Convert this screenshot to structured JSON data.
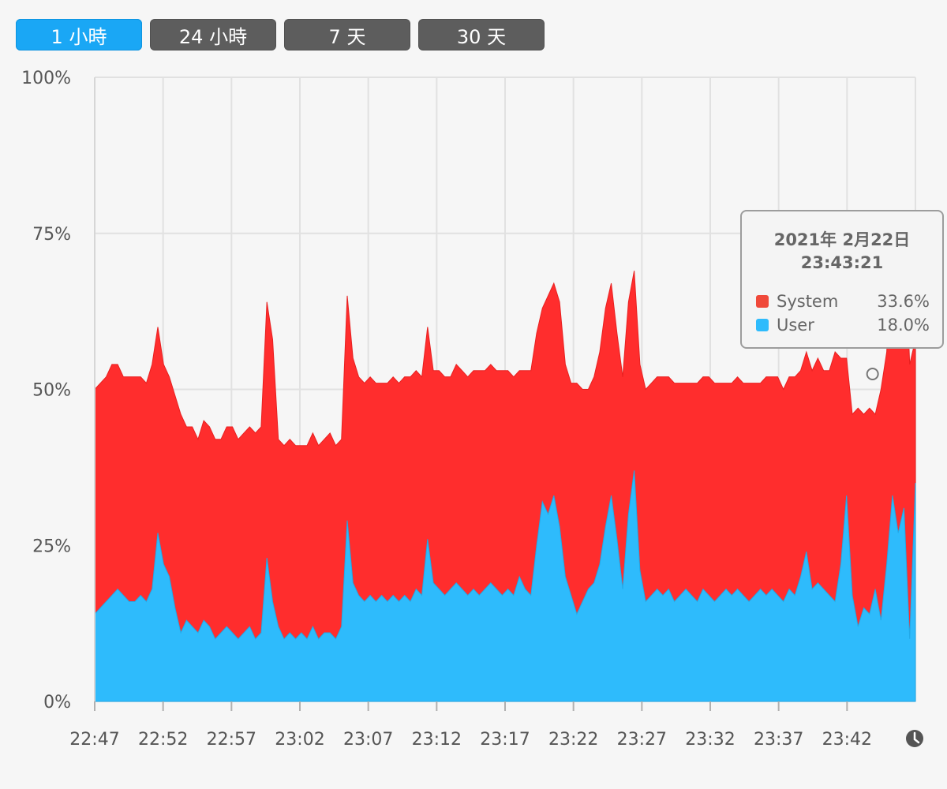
{
  "tabs": [
    {
      "label": "1 小時",
      "active": true
    },
    {
      "label": "24 小時",
      "active": false
    },
    {
      "label": "7 天",
      "active": false
    },
    {
      "label": "30 天",
      "active": false
    }
  ],
  "colors": {
    "system": "#ff2d2d",
    "user": "#2ebbfc",
    "tab_active": "#1aa7f5",
    "tab_inactive": "#5d5d5d",
    "grid": "#e1e1e1"
  },
  "tooltip": {
    "date": "2021年 2月22日",
    "time": "23:43:21",
    "rows": [
      {
        "label": "System",
        "value": "33.6%",
        "color": "#f0493a"
      },
      {
        "label": "User",
        "value": "18.0%",
        "color": "#2ebbfc"
      }
    ]
  },
  "clock_icon": "clock-icon",
  "chart_data": {
    "type": "area",
    "stacked": true,
    "x_tick_labels": [
      "22:47",
      "22:52",
      "22:57",
      "23:02",
      "23:07",
      "23:12",
      "23:17",
      "23:22",
      "23:27",
      "23:32",
      "23:37",
      "23:42"
    ],
    "y_tick_labels": [
      "0%",
      "25%",
      "50%",
      "75%",
      "100%"
    ],
    "ylim": [
      0,
      100
    ],
    "x_start": "22:47",
    "x_end": "23:47",
    "grid": true,
    "series": [
      {
        "name": "User",
        "values": [
          14,
          15,
          16,
          17,
          18,
          17,
          16,
          16,
          17,
          16,
          18,
          27,
          22,
          20,
          15,
          11,
          13,
          12,
          11,
          13,
          12,
          10,
          11,
          12,
          11,
          10,
          11,
          12,
          10,
          11,
          23,
          16,
          12,
          10,
          11,
          10,
          11,
          10,
          12,
          10,
          11,
          11,
          10,
          12,
          29,
          19,
          17,
          16,
          17,
          16,
          17,
          16,
          17,
          16,
          17,
          16,
          18,
          17,
          26,
          19,
          18,
          17,
          18,
          19,
          18,
          17,
          18,
          17,
          18,
          19,
          18,
          17,
          18,
          17,
          20,
          18,
          17,
          25,
          32,
          30,
          33,
          28,
          20,
          17,
          14,
          16,
          18,
          19,
          22,
          28,
          33,
          26,
          18,
          30,
          37,
          21,
          16,
          17,
          18,
          17,
          18,
          16,
          17,
          18,
          17,
          16,
          18,
          17,
          16,
          17,
          18,
          17,
          18,
          17,
          16,
          17,
          18,
          17,
          18,
          17,
          16,
          18,
          17,
          20,
          24,
          18,
          19,
          18,
          17,
          16,
          22,
          33,
          17,
          12,
          15,
          14,
          18,
          13,
          22,
          33,
          27,
          31,
          10,
          35
        ],
        "color": "#2ebbfc"
      },
      {
        "name": "System",
        "values": [
          36,
          36,
          36,
          37,
          36,
          35,
          36,
          36,
          35,
          35,
          36,
          33,
          32,
          32,
          34,
          35,
          31,
          32,
          31,
          32,
          32,
          32,
          31,
          32,
          33,
          32,
          32,
          32,
          33,
          33,
          41,
          42,
          30,
          31,
          31,
          31,
          30,
          31,
          31,
          31,
          31,
          32,
          31,
          30,
          36,
          36,
          35,
          35,
          35,
          35,
          34,
          35,
          35,
          35,
          35,
          36,
          35,
          35,
          34,
          34,
          35,
          35,
          34,
          35,
          35,
          35,
          35,
          36,
          35,
          35,
          35,
          36,
          35,
          35,
          33,
          35,
          36,
          34,
          31,
          35,
          34,
          36,
          34,
          34,
          37,
          34,
          32,
          33,
          34,
          35,
          34,
          33,
          34,
          34,
          32,
          33,
          34,
          34,
          34,
          35,
          34,
          35,
          34,
          33,
          34,
          35,
          34,
          35,
          35,
          34,
          33,
          34,
          34,
          34,
          35,
          34,
          33,
          35,
          34,
          35,
          34,
          34,
          35,
          33,
          32,
          35,
          36,
          35,
          36,
          40,
          33,
          22,
          29,
          35,
          31,
          33,
          28,
          37,
          34,
          42,
          51,
          46,
          44,
          23
        ],
        "color": "#ff2d2d"
      }
    ],
    "tooltip_marker_x": "23:43"
  }
}
